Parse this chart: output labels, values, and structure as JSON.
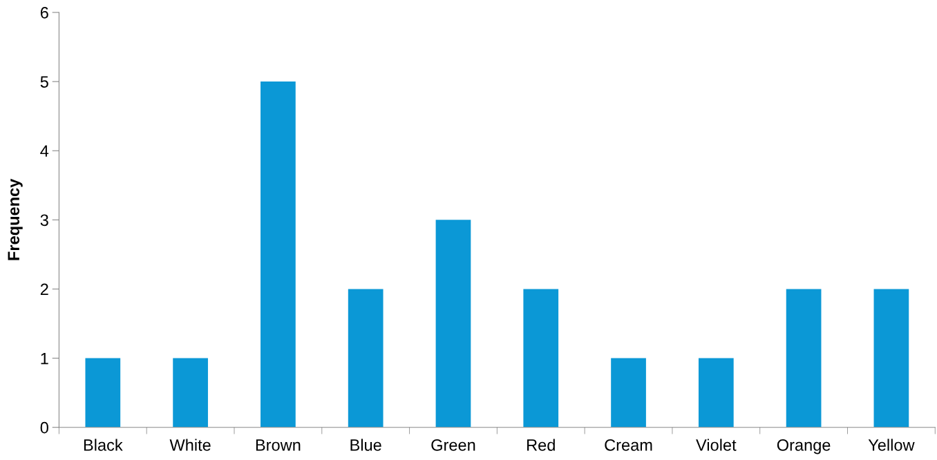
{
  "chart_data": {
    "type": "bar",
    "ylabel": "Frequency",
    "categories": [
      "Black",
      "White",
      "Brown",
      "Blue",
      "Green",
      "Red",
      "Cream",
      "Violet",
      "Orange",
      "Yellow"
    ],
    "values": [
      1,
      1,
      5,
      2,
      3,
      2,
      1,
      1,
      2,
      2
    ],
    "color": "#0b98d6",
    "ylim": [
      0,
      6
    ],
    "yticks": [
      0,
      1,
      2,
      3,
      4,
      5,
      6
    ],
    "grid": false
  }
}
